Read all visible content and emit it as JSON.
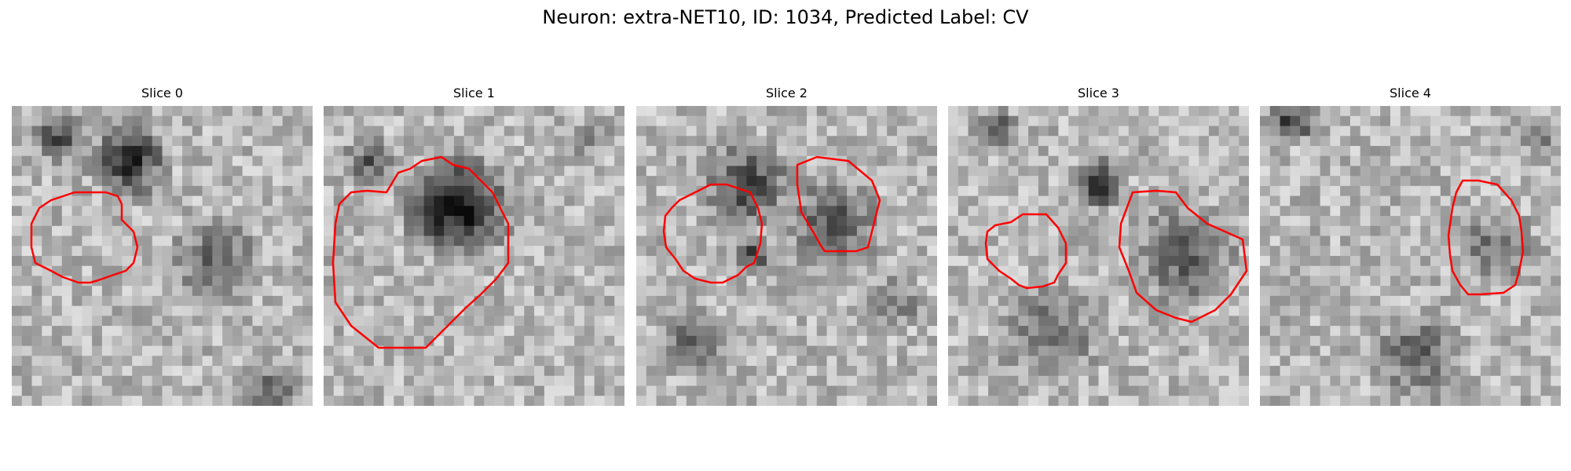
{
  "figure": {
    "title": "Neuron: extra-NET10, ID: 1034, Predicted Label: CV"
  },
  "colors": {
    "background": "#ffffff",
    "contour": "#ff0000",
    "text": "#000000"
  },
  "image_style": {
    "colormap": "grayscale",
    "grid_size": 30
  },
  "panels": [
    {
      "title": "Slice 0"
    },
    {
      "title": "Slice 1"
    },
    {
      "title": "Slice 2"
    },
    {
      "title": "Slice 3"
    },
    {
      "title": "Slice 4"
    }
  ]
}
